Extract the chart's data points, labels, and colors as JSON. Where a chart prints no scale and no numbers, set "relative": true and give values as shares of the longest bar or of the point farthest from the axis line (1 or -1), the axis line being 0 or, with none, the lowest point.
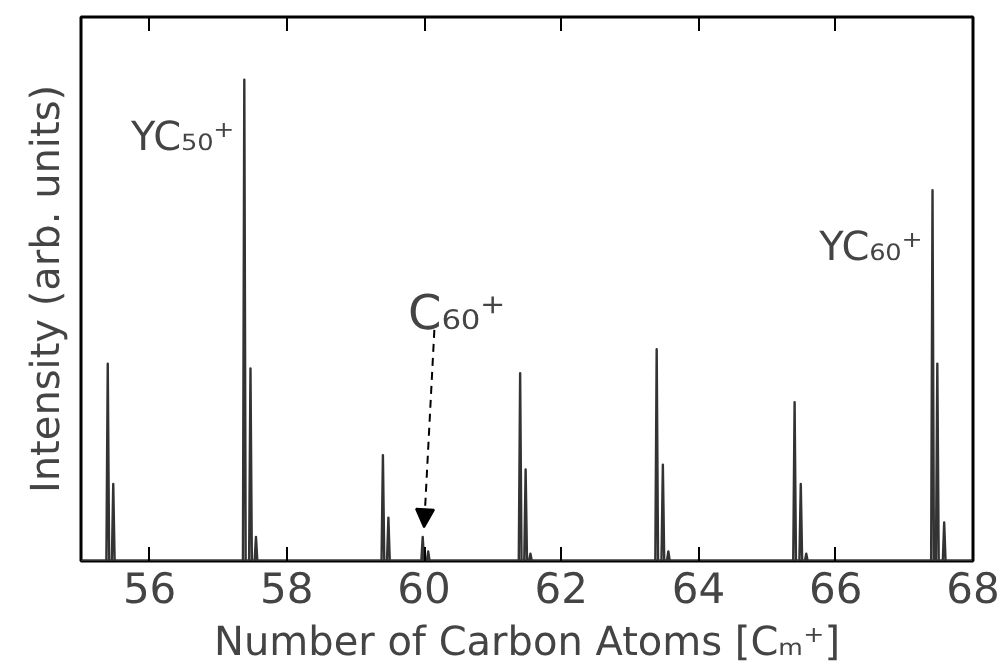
{
  "chart_data": {
    "type": "line",
    "relative": true,
    "xlabel": "Number of Carbon Atoms [Cₘ⁺]",
    "ylabel": "Intensity (arb. units)",
    "xlim": [
      55,
      68
    ],
    "xticks": [
      56,
      58,
      60,
      62,
      64,
      66,
      68
    ],
    "series": [
      {
        "color": "#333333",
        "x": [
          55.0,
          55.37,
          55.39,
          55.41,
          55.45,
          55.47,
          55.49,
          57.36,
          57.38,
          57.4,
          57.45,
          57.47,
          57.49,
          57.53,
          57.55,
          57.57,
          59.38,
          59.4,
          59.42,
          59.46,
          59.48,
          59.5,
          59.96,
          59.98,
          60.0,
          60.04,
          60.06,
          60.08,
          61.38,
          61.4,
          61.42,
          61.46,
          61.48,
          61.5,
          61.53,
          61.55,
          61.57,
          63.37,
          63.39,
          63.41,
          63.46,
          63.48,
          63.5,
          63.54,
          63.56,
          63.58,
          65.38,
          65.4,
          65.42,
          65.47,
          65.49,
          65.51,
          65.55,
          65.57,
          65.59,
          67.39,
          67.41,
          67.43,
          67.46,
          67.48,
          67.5,
          67.56,
          67.58,
          67.6,
          68.0
        ],
        "values": [
          0,
          0,
          0.41,
          0,
          0,
          0.16,
          0,
          0,
          1,
          0,
          0,
          0.4,
          0,
          0,
          0.05,
          0,
          0,
          0.22,
          0,
          0,
          0.09,
          0,
          0,
          0.05,
          0,
          0,
          0.02,
          0,
          0,
          0.39,
          0,
          0,
          0.19,
          0,
          0,
          0.015,
          0,
          0,
          0.44,
          0,
          0,
          0.2,
          0,
          0,
          0.02,
          0,
          0,
          0.33,
          0,
          0,
          0.16,
          0,
          0,
          0.015,
          0,
          0,
          0.77,
          0,
          0,
          0.41,
          0,
          0,
          0.08,
          0,
          0
        ]
      }
    ],
    "annotations": [
      {
        "text": "YC₅₀⁺",
        "x": 57.38,
        "y": 1
      },
      {
        "text": "C₆₀⁺",
        "x": 60,
        "y": 0.05
      },
      {
        "text": "YC₆₀⁺",
        "x": 67.41,
        "y": 0.77
      }
    ]
  }
}
